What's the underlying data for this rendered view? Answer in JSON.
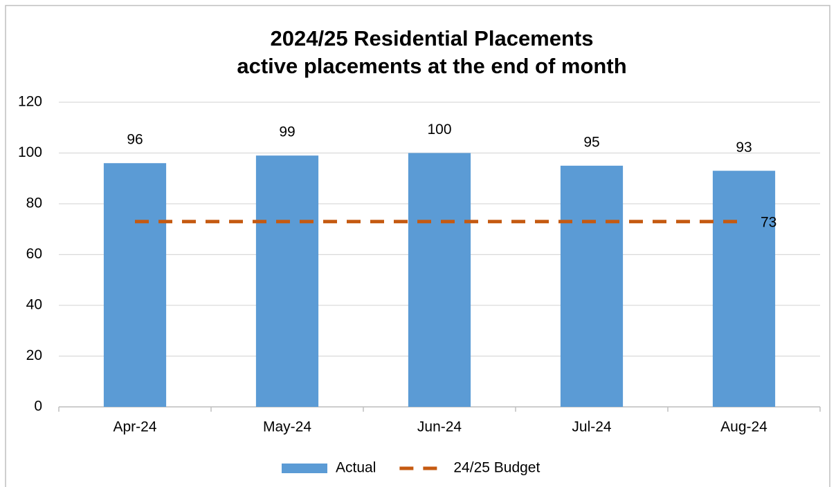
{
  "chart_data": {
    "type": "bar",
    "title": [
      "2024/25 Residential Placements",
      "active placements at the end of month"
    ],
    "categories": [
      "Apr-24",
      "May-24",
      "Jun-24",
      "Jul-24",
      "Aug-24"
    ],
    "series": [
      {
        "name": "Actual",
        "type": "bar",
        "color": "#5b9bd5",
        "values": [
          96,
          99,
          100,
          95,
          93
        ]
      },
      {
        "name": "24/25 Budget",
        "type": "line",
        "dashed": true,
        "color": "#c55a11",
        "values": [
          73,
          73,
          73,
          73,
          73
        ]
      }
    ],
    "ylim": [
      0,
      120
    ],
    "yticks": [
      0,
      20,
      40,
      60,
      80,
      100,
      120
    ],
    "grid": true,
    "legend": "bottom"
  }
}
